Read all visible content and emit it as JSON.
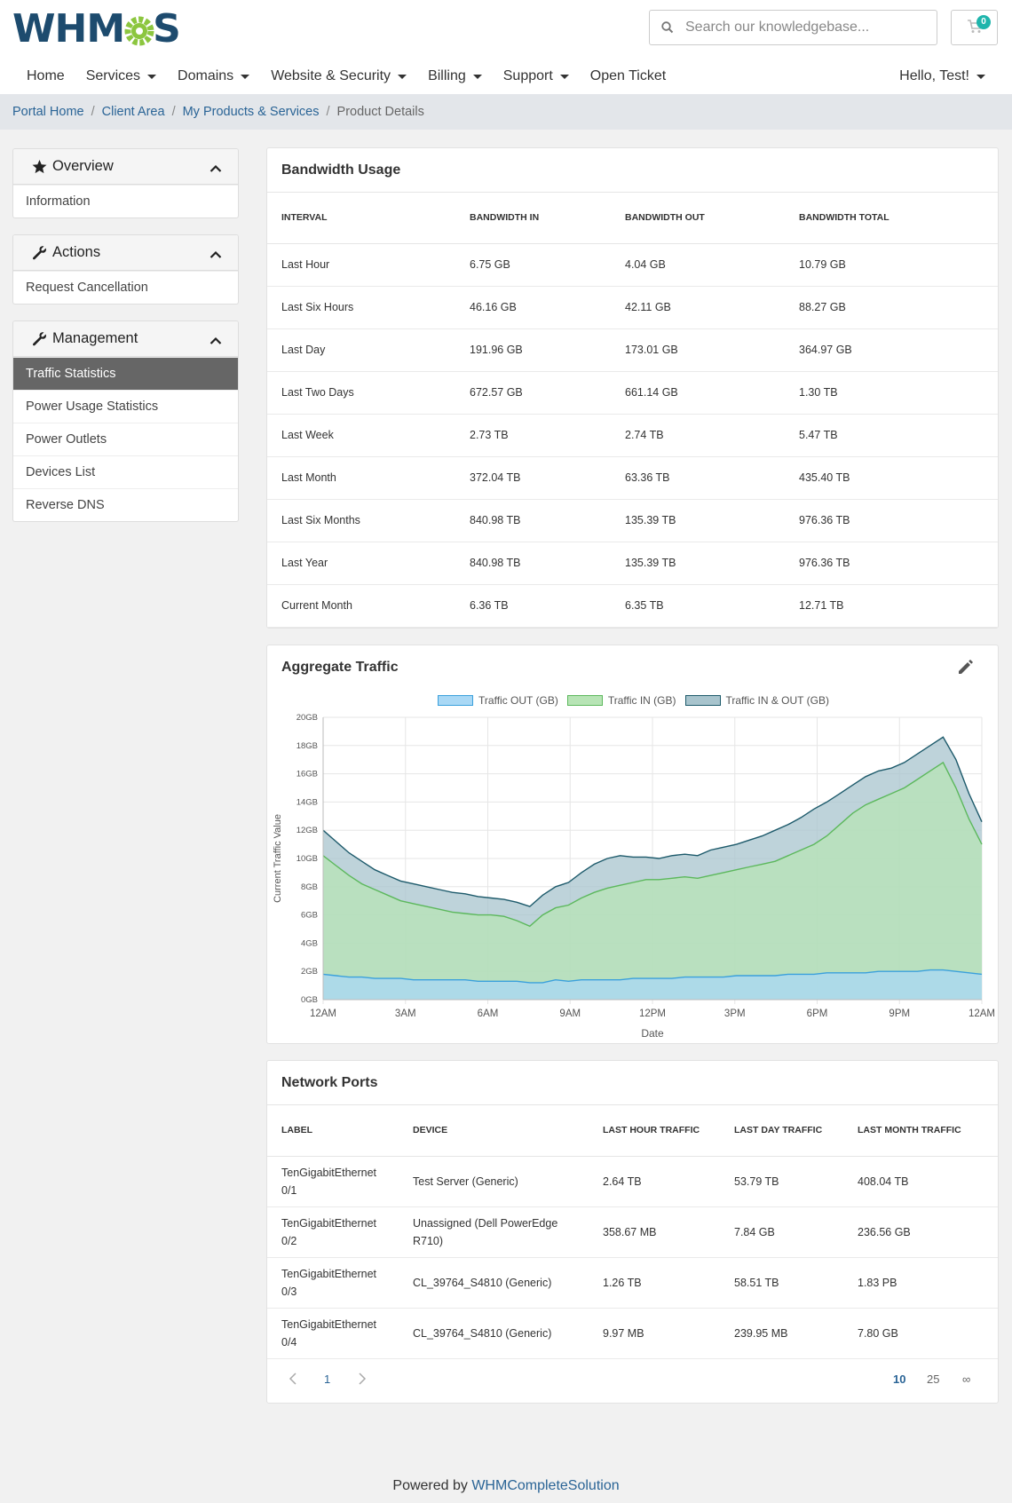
{
  "header": {
    "logo_text_left": "WHM",
    "logo_text_right": "S",
    "search_placeholder": "Search our knowledgebase...",
    "cart_count": "0",
    "nav": [
      {
        "label": "Home",
        "dropdown": false
      },
      {
        "label": "Services",
        "dropdown": true
      },
      {
        "label": "Domains",
        "dropdown": true
      },
      {
        "label": "Website & Security",
        "dropdown": true
      },
      {
        "label": "Billing",
        "dropdown": true
      },
      {
        "label": "Support",
        "dropdown": true
      },
      {
        "label": "Open Ticket",
        "dropdown": false
      }
    ],
    "user_greeting": "Hello, Test!"
  },
  "breadcrumb": {
    "items": [
      "Portal Home",
      "Client Area",
      "My Products & Services"
    ],
    "current": "Product Details"
  },
  "sidebar": {
    "overview": {
      "title": "Overview",
      "items": [
        "Information"
      ]
    },
    "actions": {
      "title": "Actions",
      "items": [
        "Request Cancellation"
      ]
    },
    "management": {
      "title": "Management",
      "items": [
        "Traffic Statistics",
        "Power Usage Statistics",
        "Power Outlets",
        "Devices List",
        "Reverse DNS"
      ],
      "active": "Traffic Statistics"
    }
  },
  "bandwidth": {
    "title": "Bandwidth Usage",
    "headers": [
      "Interval",
      "Bandwidth In",
      "Bandwidth Out",
      "Bandwidth Total"
    ],
    "rows": [
      [
        "Last Hour",
        "6.75 GB",
        "4.04 GB",
        "10.79 GB"
      ],
      [
        "Last Six Hours",
        "46.16 GB",
        "42.11 GB",
        "88.27 GB"
      ],
      [
        "Last Day",
        "191.96 GB",
        "173.01 GB",
        "364.97 GB"
      ],
      [
        "Last Two Days",
        "672.57 GB",
        "661.14 GB",
        "1.30 TB"
      ],
      [
        "Last Week",
        "2.73 TB",
        "2.74 TB",
        "5.47 TB"
      ],
      [
        "Last Month",
        "372.04 TB",
        "63.36 TB",
        "435.40 TB"
      ],
      [
        "Last Six Months",
        "840.98 TB",
        "135.39 TB",
        "976.36 TB"
      ],
      [
        "Last Year",
        "840.98 TB",
        "135.39 TB",
        "976.36 TB"
      ],
      [
        "Current Month",
        "6.36 TB",
        "6.35 TB",
        "12.71 TB"
      ]
    ]
  },
  "traffic": {
    "title": "Aggregate Traffic"
  },
  "chart_data": {
    "type": "area",
    "xlabel": "Date",
    "ylabel": "Current Traffic Value",
    "ylim": [
      0,
      20
    ],
    "yticks": [
      "0GB",
      "2GB",
      "4GB",
      "6GB",
      "8GB",
      "10GB",
      "12GB",
      "14GB",
      "16GB",
      "18GB",
      "20GB"
    ],
    "xticks": [
      "12AM",
      "3AM",
      "6AM",
      "9AM",
      "12PM",
      "3PM",
      "6PM",
      "9PM",
      "12AM"
    ],
    "grid": true,
    "legend_position": "top",
    "series": [
      {
        "name": "Traffic OUT (GB)",
        "color": "#3aa0dc",
        "fill": "#a9d8f5",
        "values": [
          1.8,
          1.7,
          1.6,
          1.6,
          1.5,
          1.5,
          1.5,
          1.4,
          1.4,
          1.4,
          1.4,
          1.4,
          1.3,
          1.3,
          1.3,
          1.3,
          1.2,
          1.2,
          1.4,
          1.3,
          1.4,
          1.4,
          1.4,
          1.4,
          1.5,
          1.5,
          1.5,
          1.5,
          1.6,
          1.6,
          1.6,
          1.6,
          1.7,
          1.7,
          1.7,
          1.7,
          1.8,
          1.8,
          1.8,
          1.9,
          1.9,
          1.9,
          1.9,
          2.0,
          2.0,
          2.0,
          2.0,
          2.1,
          2.1,
          2.0,
          1.9,
          1.8
        ]
      },
      {
        "name": "Traffic IN (GB)",
        "color": "#5cb85c",
        "fill": "#b7e4b5",
        "values": [
          10.2,
          9.5,
          8.8,
          8.2,
          7.8,
          7.4,
          7.0,
          6.8,
          6.6,
          6.4,
          6.2,
          6.1,
          6.0,
          6.0,
          5.9,
          5.6,
          5.2,
          6.0,
          6.5,
          6.7,
          7.2,
          7.6,
          7.9,
          8.1,
          8.3,
          8.5,
          8.5,
          8.6,
          8.7,
          8.6,
          8.8,
          9.0,
          9.2,
          9.4,
          9.6,
          9.8,
          10.2,
          10.6,
          11.0,
          11.6,
          12.4,
          13.2,
          13.8,
          14.2,
          14.6,
          15.0,
          15.6,
          16.2,
          16.8,
          15.0,
          12.8,
          11.0
        ]
      },
      {
        "name": "Traffic IN & OUT (GB)",
        "color": "#1d5a6b",
        "fill": "#a8c4cd",
        "values": [
          12.0,
          11.2,
          10.4,
          9.8,
          9.2,
          8.8,
          8.4,
          8.2,
          8.0,
          7.8,
          7.6,
          7.5,
          7.3,
          7.2,
          7.1,
          6.9,
          6.6,
          7.4,
          8.0,
          8.3,
          9.0,
          9.6,
          10.0,
          10.2,
          10.1,
          10.1,
          10.0,
          10.2,
          10.3,
          10.2,
          10.6,
          10.8,
          11.0,
          11.3,
          11.6,
          12.0,
          12.4,
          12.9,
          13.5,
          14.0,
          14.6,
          15.2,
          15.8,
          16.2,
          16.4,
          16.8,
          17.4,
          18.0,
          18.6,
          17.0,
          14.6,
          12.6
        ]
      }
    ]
  },
  "ports": {
    "title": "Network Ports",
    "headers": [
      "Label",
      "Device",
      "Last Hour Traffic",
      "Last Day Traffic",
      "Last Month Traffic"
    ],
    "rows": [
      [
        "TenGigabitEthernet 0/1",
        "Test Server (Generic)",
        "2.64 TB",
        "53.79 TB",
        "408.04 TB"
      ],
      [
        "TenGigabitEthernet 0/2",
        "Unassigned (Dell PowerEdge R710)",
        "358.67 MB",
        "7.84 GB",
        "236.56 GB"
      ],
      [
        "TenGigabitEthernet 0/3",
        "CL_39764_S4810 (Generic)",
        "1.26 TB",
        "58.51 TB",
        "1.83 PB"
      ],
      [
        "TenGigabitEthernet 0/4",
        "CL_39764_S4810 (Generic)",
        "9.97 MB",
        "239.95 MB",
        "7.80 GB"
      ]
    ],
    "page": "1",
    "page_sizes": [
      "10",
      "25",
      "∞"
    ]
  },
  "footer": {
    "prefix": "Powered by ",
    "link": "WHMCompleteSolution"
  }
}
